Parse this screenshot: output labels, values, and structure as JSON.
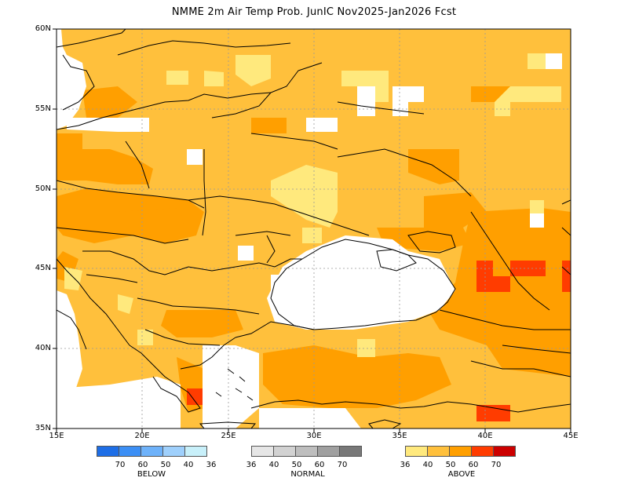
{
  "title": "NMME 2m Air Temp Prob. JunIC  Nov2025-Jan2026 Fcst",
  "map": {
    "lon_range": [
      15,
      45
    ],
    "lat_range": [
      35,
      60
    ],
    "x_ticks": [
      "15E",
      "20E",
      "25E",
      "30E",
      "35E",
      "40E",
      "45E"
    ],
    "y_ticks": [
      "60N",
      "55N",
      "50N",
      "45N",
      "40N",
      "35N"
    ],
    "colors": {
      "above_36_40": "#ffe97d",
      "above_40_50": "#ffc03c",
      "above_50_60": "#ff9f00",
      "above_60_70": "#ff3c00",
      "above_70": "#cc0000",
      "coast": "#000000",
      "grid": "#999999"
    }
  },
  "legend": {
    "below": {
      "label": "BELOW",
      "values": [
        "70",
        "60",
        "50",
        "40",
        "36"
      ],
      "colors": [
        "#1e6ee6",
        "#3c8ff5",
        "#6eb2fa",
        "#9fd0fc",
        "#c8f0fa"
      ]
    },
    "normal": {
      "label": "NORMAL",
      "values": [
        "36",
        "40",
        "50",
        "60",
        "70"
      ],
      "colors": [
        "#e6e6e6",
        "#d2d2d2",
        "#bebebe",
        "#a0a0a0",
        "#787878"
      ]
    },
    "above": {
      "label": "ABOVE",
      "values": [
        "36",
        "40",
        "50",
        "60",
        "70"
      ],
      "colors": [
        "#ffe97d",
        "#ffc03c",
        "#ff9f00",
        "#ff3c00",
        "#cc0000"
      ]
    }
  }
}
